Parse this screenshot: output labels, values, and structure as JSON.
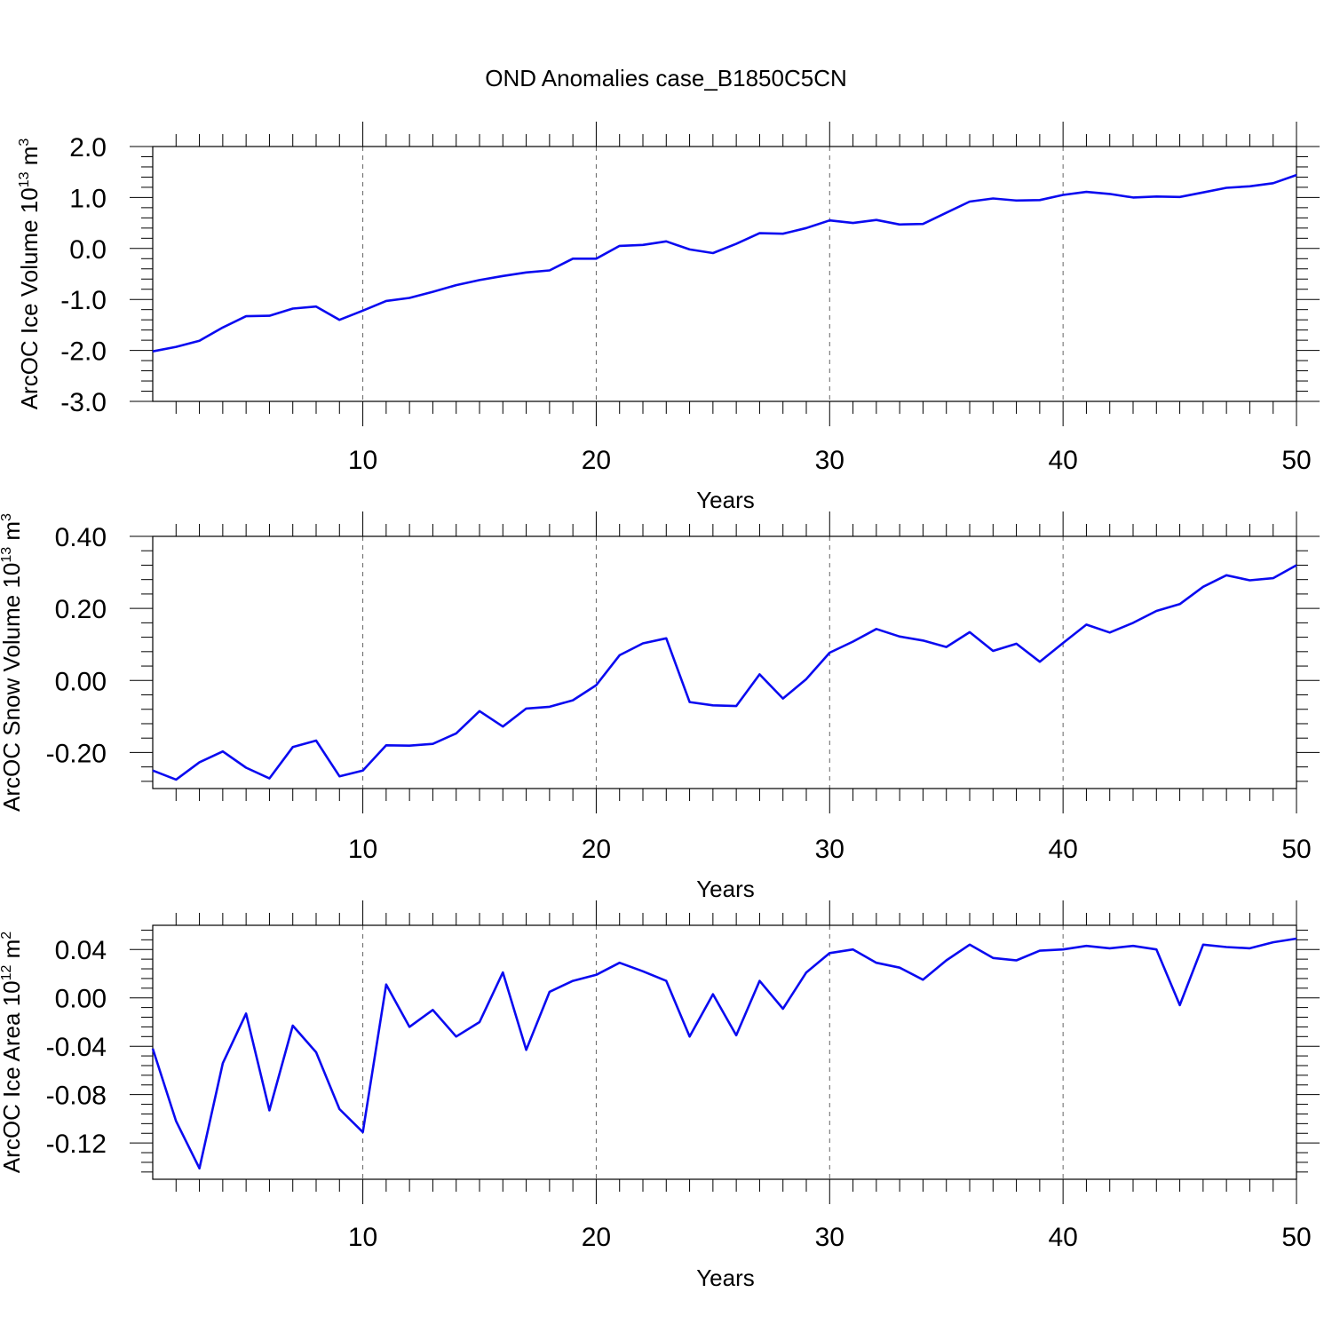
{
  "figure_title": "OND Anomalies case_B1850C5CN",
  "series_color": "#0a0af0",
  "chart_data": [
    {
      "type": "line",
      "title": "OND Anomalies case_B1850C5CN",
      "xlabel": "Years",
      "ylabel": {
        "text": "ArcOC Ice Volume 10",
        "exp": "13",
        "unit": " m",
        "unit_exp": "3"
      },
      "xlim": [
        1,
        50
      ],
      "ylim": [
        -3.0,
        2.0
      ],
      "xticks": [
        10,
        20,
        30,
        40,
        50
      ],
      "xtick_labels": [
        "10",
        "20",
        "30",
        "40",
        "50"
      ],
      "yticks": [
        -3.0,
        -2.0,
        -1.0,
        0.0,
        1.0,
        2.0
      ],
      "ytick_labels": [
        "-3.0",
        "-2.0",
        "-1.0",
        "0.0",
        "1.0",
        "2.0"
      ],
      "grid": "vertical dashed at major x ticks",
      "x": [
        1,
        2,
        3,
        4,
        5,
        6,
        7,
        8,
        9,
        10,
        11,
        12,
        13,
        14,
        15,
        16,
        17,
        18,
        19,
        20,
        21,
        22,
        23,
        24,
        25,
        26,
        27,
        28,
        29,
        30,
        31,
        32,
        33,
        34,
        35,
        36,
        37,
        38,
        39,
        40,
        41,
        42,
        43,
        44,
        45,
        46,
        47,
        48,
        49,
        50
      ],
      "values": [
        -2.02,
        -1.93,
        -1.81,
        -1.55,
        -1.33,
        -1.32,
        -1.18,
        -1.14,
        -1.4,
        -1.22,
        -1.03,
        -0.97,
        -0.85,
        -0.72,
        -0.62,
        -0.54,
        -0.47,
        -0.43,
        -0.2,
        -0.2,
        0.05,
        0.07,
        0.14,
        -0.02,
        -0.09,
        0.09,
        0.3,
        0.29,
        0.4,
        0.55,
        0.5,
        0.56,
        0.47,
        0.48,
        0.7,
        0.92,
        0.98,
        0.94,
        0.95,
        1.05,
        1.11,
        1.07,
        1.0,
        1.02,
        1.01,
        1.1,
        1.19,
        1.22,
        1.28,
        1.44
      ]
    },
    {
      "type": "line",
      "xlabel": "Years",
      "ylabel": {
        "text": "ArcOC Snow Volume 10",
        "exp": "13",
        "unit": " m",
        "unit_exp": "3"
      },
      "xlim": [
        1,
        50
      ],
      "ylim": [
        -0.3,
        0.4
      ],
      "xticks": [
        10,
        20,
        30,
        40,
        50
      ],
      "xtick_labels": [
        "10",
        "20",
        "30",
        "40",
        "50"
      ],
      "yticks": [
        -0.2,
        0.0,
        0.2,
        0.4
      ],
      "ytick_labels": [
        "-0.20",
        "0.00",
        "0.20",
        "0.40"
      ],
      "grid": "vertical dashed at major x ticks",
      "x": [
        1,
        2,
        3,
        4,
        5,
        6,
        7,
        8,
        9,
        10,
        11,
        12,
        13,
        14,
        15,
        16,
        17,
        18,
        19,
        20,
        21,
        22,
        23,
        24,
        25,
        26,
        27,
        28,
        29,
        30,
        31,
        32,
        33,
        34,
        35,
        36,
        37,
        38,
        39,
        40,
        41,
        42,
        43,
        44,
        45,
        46,
        47,
        48,
        49,
        50
      ],
      "values": [
        -0.25,
        -0.275,
        -0.227,
        -0.197,
        -0.242,
        -0.272,
        -0.185,
        -0.167,
        -0.266,
        -0.25,
        -0.18,
        -0.181,
        -0.176,
        -0.147,
        -0.085,
        -0.128,
        -0.078,
        -0.073,
        -0.055,
        -0.013,
        0.07,
        0.103,
        0.117,
        -0.06,
        -0.069,
        -0.071,
        0.017,
        -0.05,
        0.004,
        0.077,
        0.108,
        0.143,
        0.122,
        0.111,
        0.093,
        0.134,
        0.082,
        0.102,
        0.052,
        0.104,
        0.155,
        0.133,
        0.16,
        0.193,
        0.212,
        0.26,
        0.292,
        0.278,
        0.284,
        0.32
      ]
    },
    {
      "type": "line",
      "xlabel": "Years",
      "ylabel": {
        "text": "ArcOC Ice Area 10",
        "exp": "12",
        "unit": " m",
        "unit_exp": "2"
      },
      "xlim": [
        1,
        50
      ],
      "ylim": [
        -0.15,
        0.06
      ],
      "xticks": [
        10,
        20,
        30,
        40,
        50
      ],
      "xtick_labels": [
        "10",
        "20",
        "30",
        "40",
        "50"
      ],
      "yticks": [
        -0.12,
        -0.08,
        -0.04,
        0.0,
        0.04
      ],
      "ytick_labels": [
        "-0.12",
        "-0.08",
        "-0.04",
        "0.00",
        "0.04"
      ],
      "grid": "vertical dashed at major x ticks",
      "x": [
        1,
        2,
        3,
        4,
        5,
        6,
        7,
        8,
        9,
        10,
        11,
        12,
        13,
        14,
        15,
        16,
        17,
        18,
        19,
        20,
        21,
        22,
        23,
        24,
        25,
        26,
        27,
        28,
        29,
        30,
        31,
        32,
        33,
        34,
        35,
        36,
        37,
        38,
        39,
        40,
        41,
        42,
        43,
        44,
        45,
        46,
        47,
        48,
        49,
        50
      ],
      "values": [
        -0.042,
        -0.102,
        -0.141,
        -0.054,
        -0.013,
        -0.093,
        -0.023,
        -0.045,
        -0.092,
        -0.111,
        0.011,
        -0.024,
        -0.01,
        -0.032,
        -0.02,
        0.021,
        -0.043,
        0.005,
        0.014,
        0.019,
        0.029,
        0.022,
        0.014,
        -0.032,
        0.003,
        -0.031,
        0.014,
        -0.009,
        0.021,
        0.037,
        0.04,
        0.029,
        0.025,
        0.015,
        0.031,
        0.044,
        0.033,
        0.031,
        0.039,
        0.04,
        0.043,
        0.041,
        0.043,
        0.04,
        -0.006,
        0.044,
        0.042,
        0.041,
        0.046,
        0.049
      ]
    }
  ]
}
